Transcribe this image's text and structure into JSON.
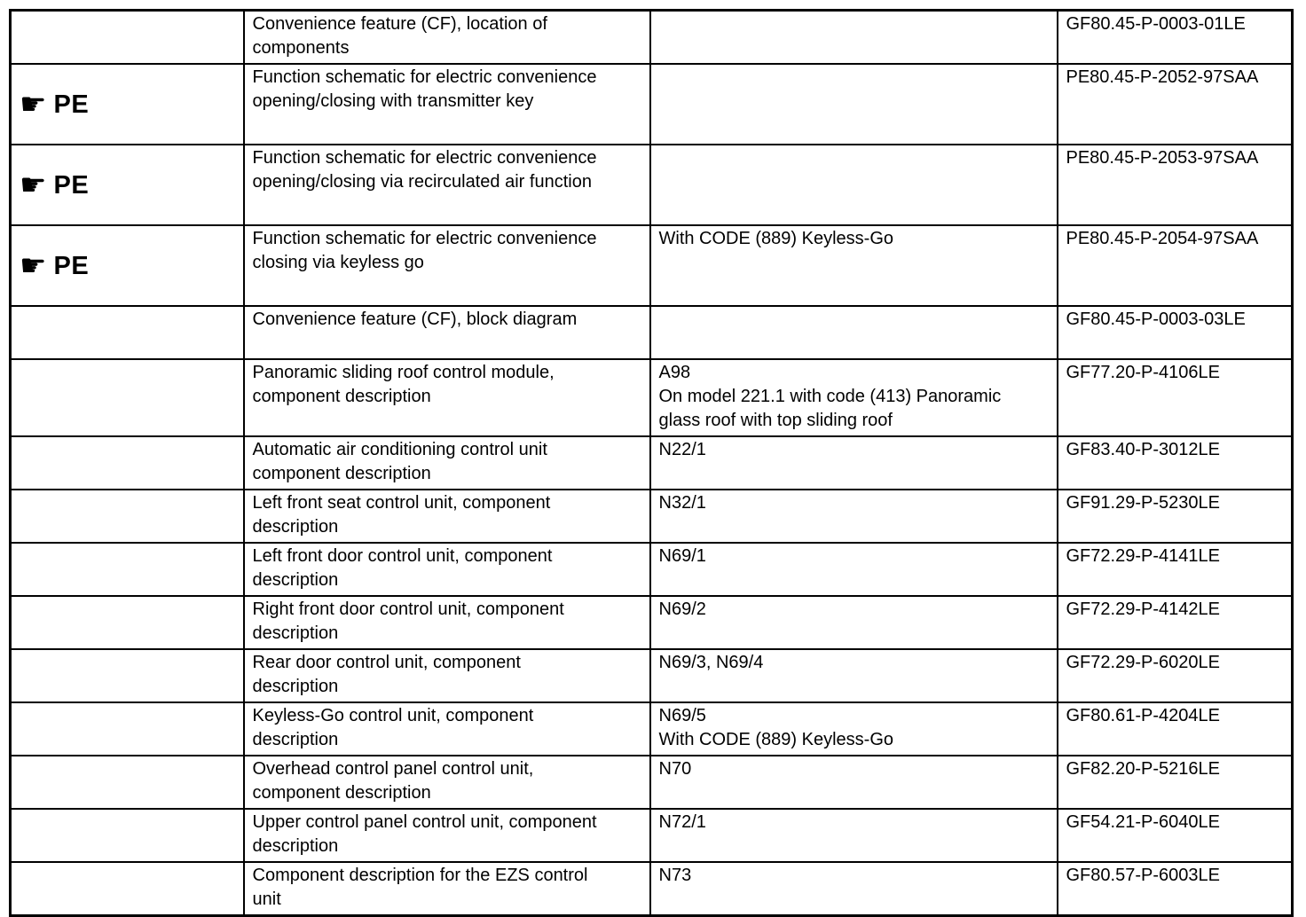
{
  "page": {
    "background_color": "#ffffff",
    "text_color": "#000000",
    "border_color": "#000000"
  },
  "icons": {
    "pointing_hand": "☛"
  },
  "pe_label": "PE",
  "table": {
    "rows": [
      {
        "pe": false,
        "description": "Convenience feature (CF), location of\ncomponents",
        "note": "",
        "code": "GF80.45-P-0003-01LE"
      },
      {
        "pe": true,
        "description": "Function schematic for electric convenience\nopening/closing with transmitter key",
        "note": "",
        "code": "PE80.45-P-2052-97SAA"
      },
      {
        "pe": true,
        "description": "Function schematic for electric convenience\nopening/closing via recirculated air function",
        "note": "",
        "code": "PE80.45-P-2053-97SAA"
      },
      {
        "pe": true,
        "description": "Function schematic for electric convenience\nclosing via keyless go",
        "note": "With CODE (889) Keyless-Go",
        "code": "PE80.45-P-2054-97SAA"
      },
      {
        "pe": false,
        "description": "Convenience feature (CF), block diagram",
        "note": "",
        "code": "GF80.45-P-0003-03LE"
      },
      {
        "pe": false,
        "description": "Panoramic sliding roof control module,\ncomponent description",
        "note": "A98\nOn model 221.1 with code (413) Panoramic\nglass roof with top sliding roof",
        "code": "GF77.20-P-4106LE"
      },
      {
        "pe": false,
        "description": "Automatic air conditioning control unit\ncomponent description",
        "note": "N22/1",
        "code": "GF83.40-P-3012LE"
      },
      {
        "pe": false,
        "description": "Left front seat control unit, component\ndescription",
        "note": "N32/1",
        "code": "GF91.29-P-5230LE"
      },
      {
        "pe": false,
        "description": "Left front door control unit, component\ndescription",
        "note": "N69/1",
        "code": "GF72.29-P-4141LE"
      },
      {
        "pe": false,
        "description": "Right front door control unit, component\ndescription",
        "note": "N69/2",
        "code": "GF72.29-P-4142LE"
      },
      {
        "pe": false,
        "description": "Rear door control unit, component\ndescription",
        "note": "N69/3, N69/4",
        "code": "GF72.29-P-6020LE"
      },
      {
        "pe": false,
        "description": "Keyless-Go control unit, component\ndescription",
        "note": "N69/5\nWith CODE (889) Keyless-Go",
        "code": "GF80.61-P-4204LE"
      },
      {
        "pe": false,
        "description": "Overhead control panel control unit,\ncomponent description",
        "note": "N70",
        "code": "GF82.20-P-5216LE"
      },
      {
        "pe": false,
        "description": "Upper control panel control unit, component\ndescription",
        "note": "N72/1",
        "code": "GF54.21-P-6040LE"
      },
      {
        "pe": false,
        "description": "Component description for the EZS control\nunit",
        "note": "N73",
        "code": "GF80.57-P-6003LE"
      }
    ]
  }
}
